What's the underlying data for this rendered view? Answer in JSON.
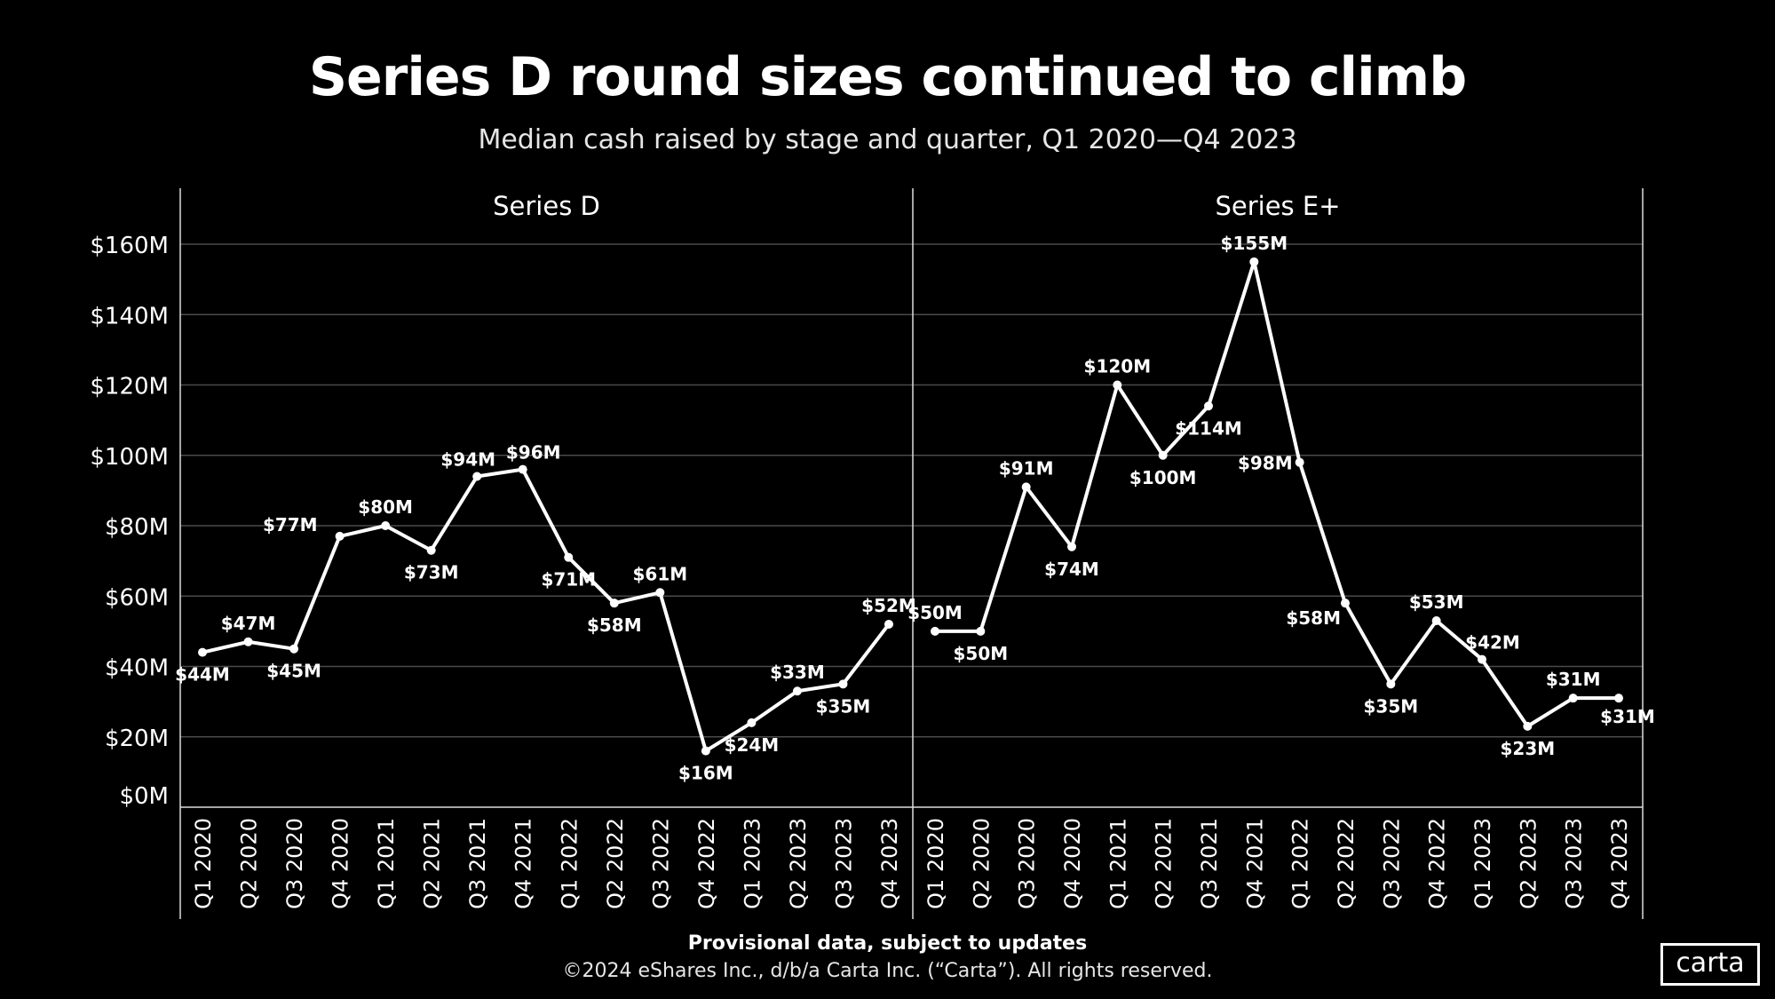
{
  "chart_data": {
    "type": "line",
    "title": "Series D round sizes continued to climb",
    "subtitle": "Median cash raised by stage and quarter, Q1 2020—Q4 2023",
    "categories": [
      "Q1 2020",
      "Q2 2020",
      "Q3 2020",
      "Q4 2020",
      "Q1 2021",
      "Q2 2021",
      "Q3 2021",
      "Q4 2021",
      "Q1 2022",
      "Q2 2022",
      "Q3 2022",
      "Q4 2022",
      "Q1 2023",
      "Q2 2023",
      "Q3 2023",
      "Q4 2023"
    ],
    "yticks": [
      "$0M",
      "$20M",
      "$40M",
      "$60M",
      "$80M",
      "$100M",
      "$120M",
      "$140M",
      "$160M"
    ],
    "ylim": [
      0,
      160
    ],
    "grid": true,
    "line_color": "#ffffff",
    "panels": [
      {
        "name": "Series D",
        "values": [
          44,
          47,
          45,
          77,
          80,
          73,
          94,
          96,
          71,
          58,
          61,
          16,
          24,
          33,
          35,
          52
        ],
        "labels": [
          "$44M",
          "$47M",
          "$45M",
          "$77M",
          "$80M",
          "$73M",
          "$94M",
          "$96M",
          "$71M",
          "$58M",
          "$61M",
          "$16M",
          "$24M",
          "$33M",
          "$35M",
          "$52M"
        ]
      },
      {
        "name": "Series E+",
        "values": [
          50,
          50,
          91,
          74,
          120,
          100,
          114,
          155,
          98,
          58,
          35,
          53,
          42,
          23,
          31,
          31
        ],
        "labels": [
          "$50M",
          "$50M",
          "$91M",
          "$74M",
          "$120M",
          "$100M",
          "$114M",
          "$155M",
          "$98M",
          "$58M",
          "$35M",
          "$53M",
          "$42M",
          "$23M",
          "$31M",
          "$31M"
        ]
      }
    ]
  },
  "footer": {
    "note": "Provisional data, subject to updates",
    "copyright": "©2024 eShares Inc., d/b/a Carta Inc. (“Carta”). All rights reserved."
  },
  "logo": {
    "text": "carta"
  }
}
